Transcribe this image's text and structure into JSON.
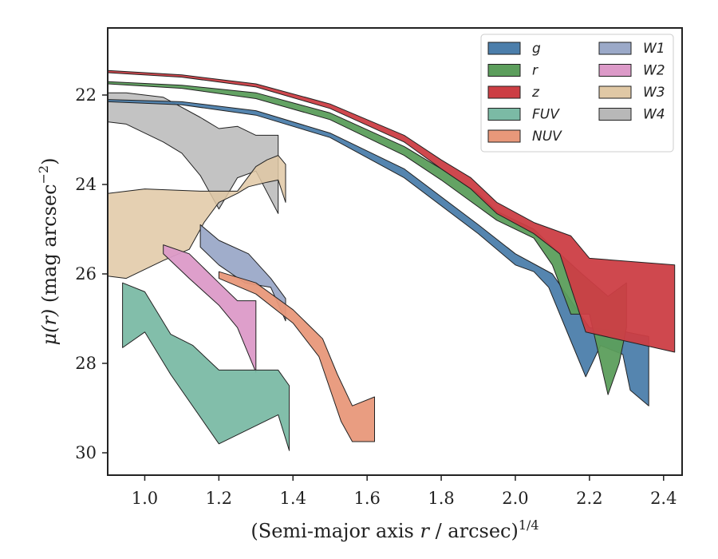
{
  "chart_data": {
    "type": "area",
    "xlabel": "(Semi-major axis r / arcsec)1/4",
    "xlabel_parts": {
      "pre": "(Semi-major axis ",
      "var": "r",
      "mid": " / arcsec)",
      "sup": "1/4"
    },
    "ylabel": "μ(r) (mag arcsec−2)",
    "ylabel_parts": {
      "var": "μ(r)",
      "mid": " (mag arcsec",
      "sup": "−2",
      "post": ")"
    },
    "xlim": [
      0.9,
      2.45
    ],
    "ylim": [
      30.5,
      20.5
    ],
    "y_inverted": true,
    "x_ticks": [
      1.0,
      1.2,
      1.4,
      1.6,
      1.8,
      2.0,
      2.2,
      2.4
    ],
    "x_tick_labels": [
      "1.0",
      "1.2",
      "1.4",
      "1.6",
      "1.8",
      "2.0",
      "2.2",
      "2.4"
    ],
    "y_ticks": [
      22,
      24,
      26,
      28,
      30
    ],
    "y_tick_labels": [
      "22",
      "24",
      "26",
      "28",
      "30"
    ],
    "grid": false,
    "legend_placement": "top-right",
    "legend_columns": 2,
    "series": [
      {
        "name": "g",
        "color": "#4c7eab",
        "upper": [
          [
            0.9,
            22.1
          ],
          [
            1.1,
            22.15
          ],
          [
            1.3,
            22.35
          ],
          [
            1.5,
            22.85
          ],
          [
            1.7,
            23.65
          ],
          [
            1.9,
            24.9
          ],
          [
            2.0,
            25.55
          ],
          [
            2.1,
            26.0
          ],
          [
            2.2,
            27.2
          ],
          [
            2.3,
            27.3
          ],
          [
            2.36,
            27.4
          ]
        ],
        "lower": [
          [
            0.9,
            22.15
          ],
          [
            1.1,
            22.22
          ],
          [
            1.3,
            22.45
          ],
          [
            1.5,
            22.95
          ],
          [
            1.7,
            23.85
          ],
          [
            1.9,
            25.1
          ],
          [
            2.0,
            25.8
          ],
          [
            2.05,
            25.95
          ],
          [
            2.09,
            26.3
          ],
          [
            2.15,
            27.5
          ],
          [
            2.19,
            28.3
          ],
          [
            2.23,
            27.6
          ],
          [
            2.29,
            27.8
          ],
          [
            2.31,
            28.6
          ],
          [
            2.36,
            28.95
          ]
        ]
      },
      {
        "name": "r",
        "color": "#5c9e5c",
        "upper": [
          [
            0.9,
            21.7
          ],
          [
            1.1,
            21.78
          ],
          [
            1.3,
            21.95
          ],
          [
            1.5,
            22.4
          ],
          [
            1.7,
            23.15
          ],
          [
            1.8,
            23.65
          ],
          [
            1.9,
            24.2
          ],
          [
            1.95,
            24.6
          ],
          [
            2.05,
            25.0
          ],
          [
            2.1,
            25.4
          ],
          [
            2.18,
            26.0
          ],
          [
            2.25,
            26.5
          ],
          [
            2.3,
            26.2
          ],
          [
            2.3,
            27.2
          ]
        ],
        "lower": [
          [
            0.9,
            21.75
          ],
          [
            1.1,
            21.85
          ],
          [
            1.3,
            22.08
          ],
          [
            1.5,
            22.55
          ],
          [
            1.7,
            23.35
          ],
          [
            1.8,
            23.9
          ],
          [
            1.9,
            24.5
          ],
          [
            1.95,
            24.8
          ],
          [
            2.05,
            25.2
          ],
          [
            2.1,
            25.8
          ],
          [
            2.15,
            26.9
          ],
          [
            2.2,
            26.9
          ],
          [
            2.25,
            28.7
          ],
          [
            2.28,
            28.0
          ],
          [
            2.3,
            27.2
          ]
        ]
      },
      {
        "name": "z",
        "color": "#cc3e44",
        "upper": [
          [
            0.9,
            21.45
          ],
          [
            1.1,
            21.55
          ],
          [
            1.3,
            21.75
          ],
          [
            1.5,
            22.2
          ],
          [
            1.7,
            22.9
          ],
          [
            1.8,
            23.45
          ],
          [
            1.88,
            23.85
          ],
          [
            1.95,
            24.4
          ],
          [
            2.05,
            24.85
          ],
          [
            2.15,
            25.15
          ],
          [
            2.2,
            25.65
          ],
          [
            2.43,
            25.8
          ]
        ],
        "lower": [
          [
            0.9,
            21.5
          ],
          [
            1.1,
            21.6
          ],
          [
            1.3,
            21.82
          ],
          [
            1.5,
            22.3
          ],
          [
            1.7,
            23.05
          ],
          [
            1.8,
            23.65
          ],
          [
            1.88,
            24.1
          ],
          [
            1.95,
            24.65
          ],
          [
            2.05,
            25.1
          ],
          [
            2.12,
            25.55
          ],
          [
            2.19,
            27.3
          ],
          [
            2.43,
            27.75
          ]
        ]
      },
      {
        "name": "FUV",
        "color": "#7bbaa5",
        "upper": [
          [
            0.94,
            26.2
          ],
          [
            1.0,
            26.4
          ],
          [
            1.07,
            27.35
          ],
          [
            1.13,
            27.6
          ],
          [
            1.2,
            28.15
          ],
          [
            1.36,
            28.15
          ],
          [
            1.39,
            28.5
          ],
          [
            1.39,
            29.95
          ]
        ],
        "lower": [
          [
            0.94,
            27.65
          ],
          [
            1.0,
            27.3
          ],
          [
            1.07,
            28.25
          ],
          [
            1.2,
            29.8
          ],
          [
            1.36,
            29.15
          ],
          [
            1.39,
            29.95
          ]
        ]
      },
      {
        "name": "NUV",
        "color": "#e8987a",
        "upper": [
          [
            1.2,
            25.95
          ],
          [
            1.3,
            26.2
          ],
          [
            1.4,
            26.8
          ],
          [
            1.48,
            27.45
          ],
          [
            1.52,
            28.25
          ],
          [
            1.56,
            28.95
          ],
          [
            1.62,
            28.75
          ],
          [
            1.62,
            29.75
          ]
        ],
        "lower": [
          [
            1.2,
            26.1
          ],
          [
            1.3,
            26.45
          ],
          [
            1.4,
            27.1
          ],
          [
            1.47,
            27.85
          ],
          [
            1.53,
            29.3
          ],
          [
            1.56,
            29.75
          ],
          [
            1.62,
            29.75
          ]
        ]
      },
      {
        "name": "W1",
        "color": "#9ba9c8",
        "upper": [
          [
            1.15,
            24.9
          ],
          [
            1.2,
            25.25
          ],
          [
            1.28,
            25.55
          ],
          [
            1.34,
            26.1
          ],
          [
            1.38,
            26.55
          ],
          [
            1.38,
            27.05
          ]
        ],
        "lower": [
          [
            1.15,
            25.4
          ],
          [
            1.2,
            25.8
          ],
          [
            1.27,
            26.2
          ],
          [
            1.34,
            26.3
          ],
          [
            1.38,
            27.05
          ]
        ]
      },
      {
        "name": "W2",
        "color": "#dc9ac8",
        "upper": [
          [
            1.05,
            25.35
          ],
          [
            1.12,
            25.55
          ],
          [
            1.2,
            26.2
          ],
          [
            1.25,
            26.6
          ],
          [
            1.3,
            26.6
          ],
          [
            1.3,
            28.2
          ]
        ],
        "lower": [
          [
            1.05,
            25.55
          ],
          [
            1.12,
            26.1
          ],
          [
            1.2,
            26.7
          ],
          [
            1.25,
            27.2
          ],
          [
            1.3,
            28.2
          ]
        ]
      },
      {
        "name": "W3",
        "color": "#e0c8a5",
        "upper": [
          [
            0.9,
            24.2
          ],
          [
            1.0,
            24.1
          ],
          [
            1.15,
            24.15
          ],
          [
            1.25,
            24.15
          ],
          [
            1.3,
            23.6
          ],
          [
            1.33,
            23.45
          ],
          [
            1.36,
            23.35
          ],
          [
            1.38,
            23.55
          ],
          [
            1.38,
            24.4
          ]
        ],
        "lower": [
          [
            0.9,
            26.05
          ],
          [
            0.95,
            26.1
          ],
          [
            1.05,
            25.7
          ],
          [
            1.12,
            25.45
          ],
          [
            1.16,
            24.85
          ],
          [
            1.2,
            24.4
          ],
          [
            1.25,
            24.2
          ],
          [
            1.28,
            24.05
          ],
          [
            1.33,
            23.95
          ],
          [
            1.36,
            23.9
          ],
          [
            1.38,
            24.4
          ]
        ]
      },
      {
        "name": "W4",
        "color": "#b8b8b8",
        "upper": [
          [
            0.9,
            21.95
          ],
          [
            0.95,
            21.95
          ],
          [
            1.05,
            22.05
          ],
          [
            1.15,
            22.5
          ],
          [
            1.2,
            22.75
          ],
          [
            1.25,
            22.7
          ],
          [
            1.3,
            22.9
          ],
          [
            1.36,
            22.9
          ],
          [
            1.36,
            24.65
          ]
        ],
        "lower": [
          [
            0.9,
            22.6
          ],
          [
            0.95,
            22.65
          ],
          [
            1.05,
            23.05
          ],
          [
            1.1,
            23.3
          ],
          [
            1.15,
            23.8
          ],
          [
            1.2,
            24.55
          ],
          [
            1.25,
            23.85
          ],
          [
            1.3,
            23.7
          ],
          [
            1.36,
            24.65
          ]
        ]
      }
    ]
  }
}
